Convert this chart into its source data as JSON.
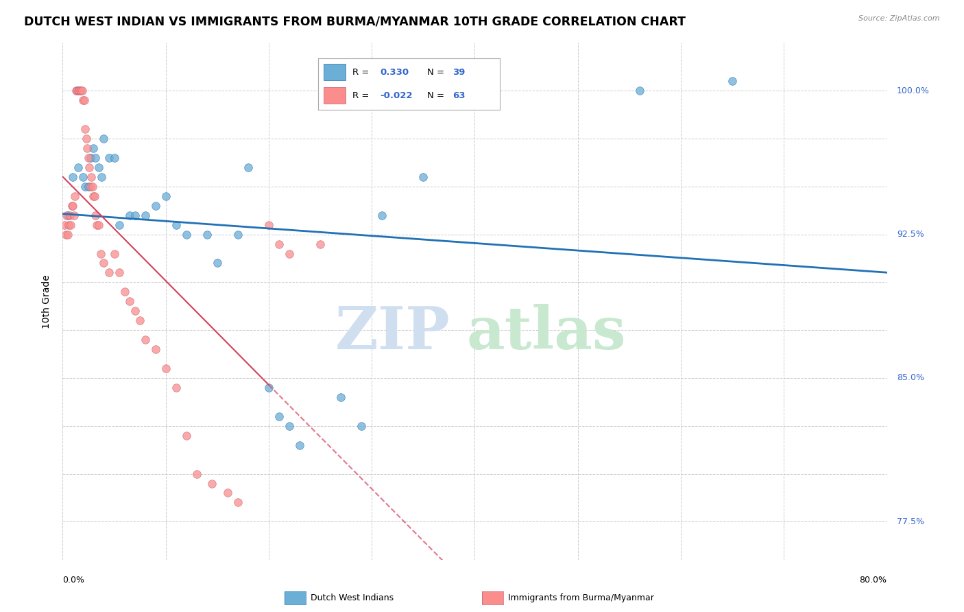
{
  "title": "DUTCH WEST INDIAN VS IMMIGRANTS FROM BURMA/MYANMAR 10TH GRADE CORRELATION CHART",
  "source": "Source: ZipAtlas.com",
  "ylabel": "10th Grade",
  "xlim": [
    0.0,
    80.0
  ],
  "ylim": [
    75.5,
    102.5
  ],
  "blue_scatter_x": [
    0.5,
    1.0,
    1.5,
    2.0,
    2.2,
    2.5,
    2.7,
    3.0,
    3.2,
    3.5,
    3.8,
    4.0,
    4.5,
    5.0,
    5.5,
    6.5,
    7.0,
    8.0,
    9.0,
    10.0,
    11.0,
    12.0,
    14.0,
    15.0,
    17.0,
    18.0,
    20.0,
    21.0,
    22.0,
    23.0,
    27.0,
    29.0,
    31.0,
    35.0,
    56.0,
    65.0
  ],
  "blue_scatter_y": [
    93.5,
    95.5,
    96.0,
    95.5,
    95.0,
    95.0,
    96.5,
    97.0,
    96.5,
    96.0,
    95.5,
    97.5,
    96.5,
    96.5,
    93.0,
    93.5,
    93.5,
    93.5,
    94.0,
    94.5,
    93.0,
    92.5,
    92.5,
    91.0,
    92.5,
    96.0,
    84.5,
    83.0,
    82.5,
    81.5,
    84.0,
    82.5,
    93.5,
    95.5,
    100.0,
    100.5
  ],
  "pink_scatter_x": [
    0.2,
    0.3,
    0.4,
    0.5,
    0.6,
    0.7,
    0.8,
    0.9,
    1.0,
    1.1,
    1.2,
    1.3,
    1.4,
    1.5,
    1.6,
    1.7,
    1.8,
    1.9,
    2.0,
    2.1,
    2.2,
    2.3,
    2.4,
    2.5,
    2.6,
    2.7,
    2.8,
    2.9,
    3.0,
    3.1,
    3.2,
    3.3,
    3.5,
    3.7,
    4.0,
    4.5,
    5.0,
    5.5,
    6.0,
    6.5,
    7.0,
    7.5,
    8.0,
    9.0,
    10.0,
    11.0,
    12.0,
    13.0,
    14.5,
    16.0,
    17.0,
    20.0,
    21.0,
    22.0,
    25.0
  ],
  "pink_scatter_y": [
    93.0,
    92.5,
    93.5,
    92.5,
    93.0,
    93.5,
    93.0,
    94.0,
    94.0,
    93.5,
    94.5,
    100.0,
    100.0,
    100.0,
    100.0,
    100.0,
    100.0,
    100.0,
    99.5,
    99.5,
    98.0,
    97.5,
    97.0,
    96.5,
    96.0,
    95.0,
    95.5,
    95.0,
    94.5,
    94.5,
    93.5,
    93.0,
    93.0,
    91.5,
    91.0,
    90.5,
    91.5,
    90.5,
    89.5,
    89.0,
    88.5,
    88.0,
    87.0,
    86.5,
    85.5,
    84.5,
    82.0,
    80.0,
    79.5,
    79.0,
    78.5,
    93.0,
    92.0,
    91.5,
    92.0
  ],
  "blue_color": "#6baed6",
  "pink_color": "#fc8d8d",
  "blue_line_color": "#2171b5",
  "pink_line_color": "#d63f5a",
  "background_color": "#ffffff",
  "grid_color": "#cccccc",
  "right_ytick_color": "#3366cc",
  "watermark_zip_color": "#d0dff0",
  "watermark_atlas_color": "#c8e8d0",
  "title_fontsize": 12.5,
  "axis_label_fontsize": 10,
  "tick_fontsize": 9
}
